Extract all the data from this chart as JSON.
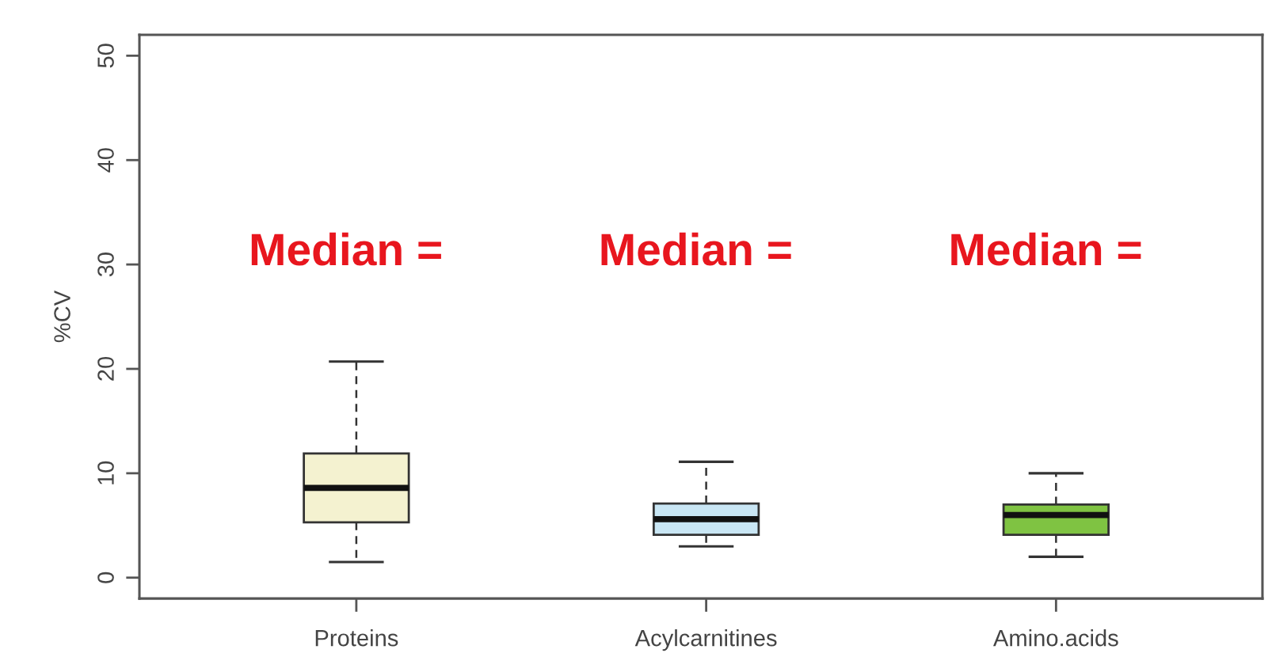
{
  "chart_data": {
    "type": "box",
    "ylabel": "%CV",
    "categories": [
      "Proteins",
      "Acylcarnitines",
      "Amino.acids"
    ],
    "colors": [
      "#f4f2d0",
      "#c9e6f4",
      "#7fc342"
    ],
    "boxes": [
      {
        "low": 1.5,
        "q1": 5.3,
        "median": 8.6,
        "q3": 11.9,
        "high": 20.7
      },
      {
        "low": 3.0,
        "q1": 4.1,
        "median": 5.6,
        "q3": 7.1,
        "high": 11.1
      },
      {
        "low": 2.0,
        "q1": 4.1,
        "median": 6.0,
        "q3": 7.0,
        "high": 10.0
      }
    ],
    "ylim": [
      -2,
      52
    ],
    "yticks": [
      0,
      10,
      20,
      30,
      40,
      50
    ],
    "grid": false,
    "annotations": [
      "Median =",
      "Median =",
      "Median ="
    ]
  }
}
